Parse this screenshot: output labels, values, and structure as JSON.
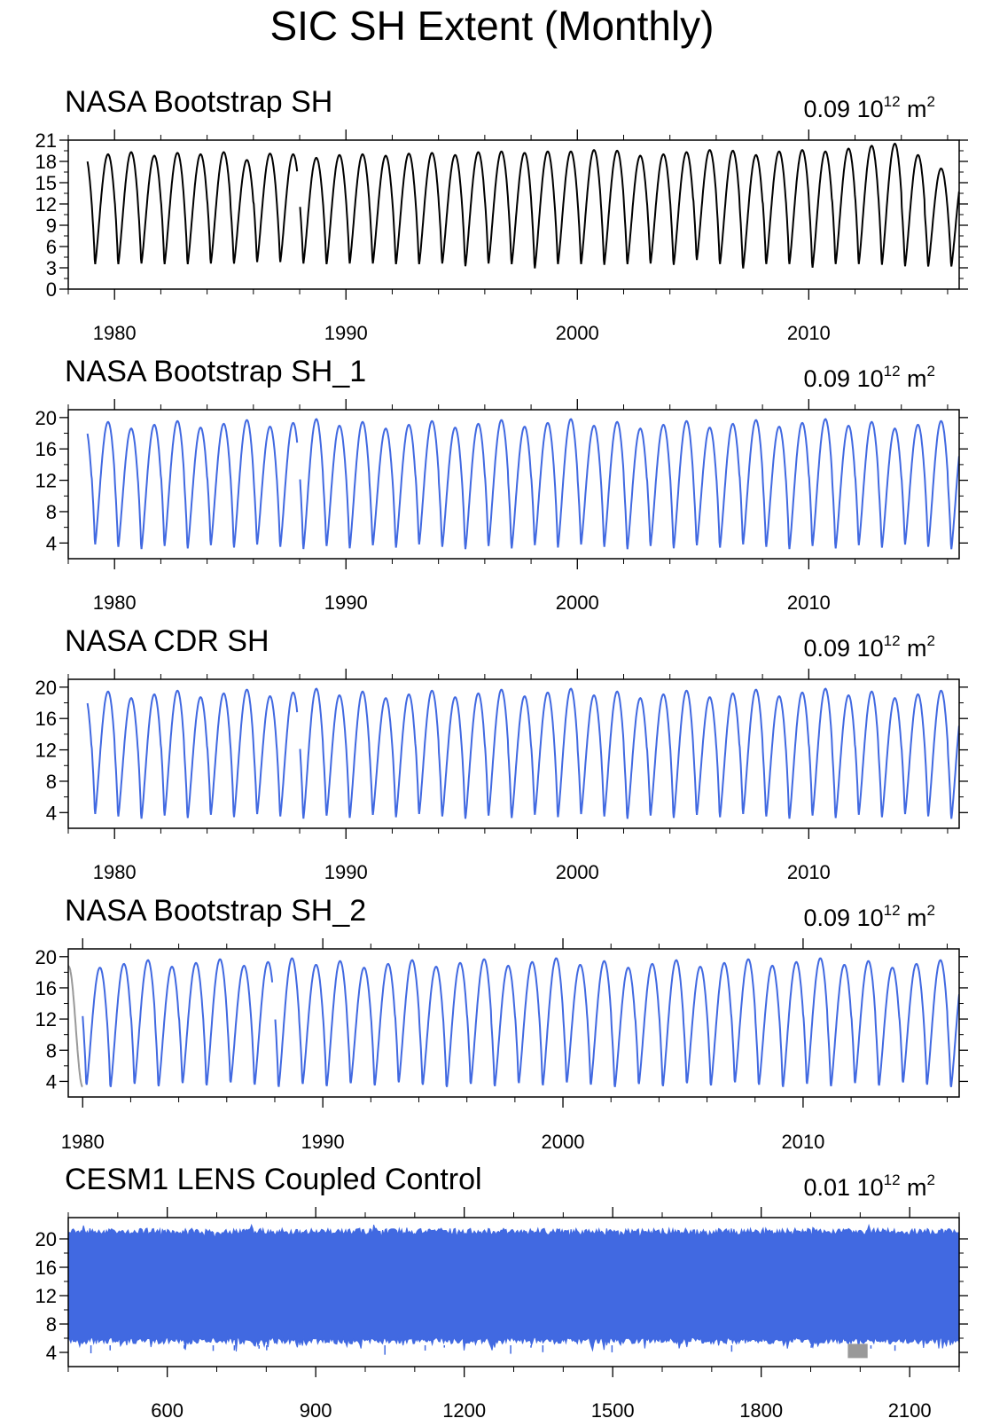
{
  "figure_title": "SIC SH Extent (Monthly)",
  "colors": {
    "obs": "#000000",
    "model": "#4169e1",
    "gap_fill": "#999999",
    "frame": "#000000"
  },
  "chart_data": [
    {
      "type": "line",
      "title": "NASA Bootstrap SH",
      "trend_value": "0.09",
      "trend_units_base": "10",
      "trend_units_exp": "12",
      "trend_units_suffix": "m",
      "trend_units_suffix_exp": "2",
      "x_range": [
        1978.0,
        2016.5
      ],
      "ylim": [
        0,
        21
      ],
      "yticks": [
        0,
        3,
        6,
        9,
        12,
        15,
        18,
        21
      ],
      "xticks": [
        1980,
        1990,
        2000,
        2010
      ],
      "series_color": "#000000",
      "seasonal": {
        "start": 1978.83,
        "end": 2016.5,
        "gap": [
          1987.9,
          1988.0
        ],
        "min_approx": 3.3,
        "max_approx": 19.2
      },
      "annual_max": [
        19.0,
        19.3,
        18.8,
        19.2,
        19.0,
        19.3,
        18.2,
        19.1,
        19.0,
        18.5,
        18.9,
        19.0,
        18.8,
        19.1,
        19.2,
        18.9,
        19.3,
        19.4,
        19.2,
        19.4,
        19.4,
        19.6,
        19.5,
        18.8,
        19.0,
        19.3,
        19.6,
        19.5,
        18.9,
        19.4,
        19.6,
        19.4,
        19.8,
        20.2,
        20.5,
        18.9,
        17.0
      ],
      "annual_min": [
        3.3,
        3.3,
        3.4,
        3.3,
        3.3,
        3.4,
        3.4,
        3.6,
        3.6,
        3.4,
        3.3,
        3.4,
        3.4,
        3.3,
        3.3,
        3.4,
        3.0,
        3.4,
        3.3,
        2.7,
        3.3,
        3.3,
        3.2,
        3.3,
        3.4,
        3.2,
        3.9,
        3.3,
        2.7,
        3.3,
        3.3,
        2.8,
        3.3,
        3.3,
        3.2,
        3.0,
        3.0
      ]
    },
    {
      "type": "line",
      "title": "NASA Bootstrap SH_1",
      "trend_value": "0.09",
      "trend_units_base": "10",
      "trend_units_exp": "12",
      "trend_units_suffix": "m",
      "trend_units_suffix_exp": "2",
      "x_range": [
        1978.0,
        2016.5
      ],
      "ylim": [
        2,
        21
      ],
      "yticks": [
        4,
        8,
        12,
        16,
        20
      ],
      "xticks": [
        1980,
        1990,
        2000,
        2010
      ],
      "series_color": "#4169e1",
      "seasonal": {
        "start": 1978.83,
        "end": 2016.5,
        "gap": [
          1987.9,
          1988.0
        ],
        "min_approx": 3.3,
        "max_approx": 19.2
      }
    },
    {
      "type": "line",
      "title": "NASA CDR SH",
      "trend_value": "0.09",
      "trend_units_base": "10",
      "trend_units_exp": "12",
      "trend_units_suffix": "m",
      "trend_units_suffix_exp": "2",
      "x_range": [
        1978.0,
        2016.5
      ],
      "ylim": [
        2,
        21
      ],
      "yticks": [
        4,
        8,
        12,
        16,
        20
      ],
      "xticks": [
        1980,
        1990,
        2000,
        2010
      ],
      "series_color": "#4169e1",
      "seasonal": {
        "start": 1978.83,
        "end": 2016.5,
        "gap": [
          1987.9,
          1988.0
        ],
        "min_approx": 3.3,
        "max_approx": 19.2
      }
    },
    {
      "type": "line",
      "title": "NASA Bootstrap SH_2",
      "trend_value": "0.09",
      "trend_units_base": "10",
      "trend_units_exp": "12",
      "trend_units_suffix": "m",
      "trend_units_suffix_exp": "2",
      "x_range": [
        1979.4,
        2016.5
      ],
      "ylim": [
        2,
        21
      ],
      "yticks": [
        4,
        8,
        12,
        16,
        20
      ],
      "xticks": [
        1980,
        1990,
        2000,
        2010
      ],
      "series_color": "#4169e1",
      "gap_fill_range": [
        1979.4,
        1980.0
      ],
      "seasonal": {
        "start": 1980.0,
        "end": 2016.5,
        "gap": [
          1987.9,
          1988.0
        ],
        "min_approx": 3.3,
        "max_approx": 19.2
      }
    },
    {
      "type": "area",
      "title": "CESM1 LENS Coupled Control",
      "trend_value": "0.01",
      "trend_units_base": "10",
      "trend_units_exp": "12",
      "trend_units_suffix": "m",
      "trend_units_suffix_exp": "2",
      "x_range": [
        400,
        2200
      ],
      "ylim": [
        2,
        23
      ],
      "yticks": [
        4,
        8,
        12,
        16,
        20
      ],
      "xticks": [
        600,
        900,
        1200,
        1500,
        1800,
        2100
      ],
      "series_color": "#4169e1",
      "band": {
        "max_approx": 21.5,
        "min_approx": 5.2
      },
      "gray_blip_range": [
        1975,
        2015
      ]
    }
  ]
}
